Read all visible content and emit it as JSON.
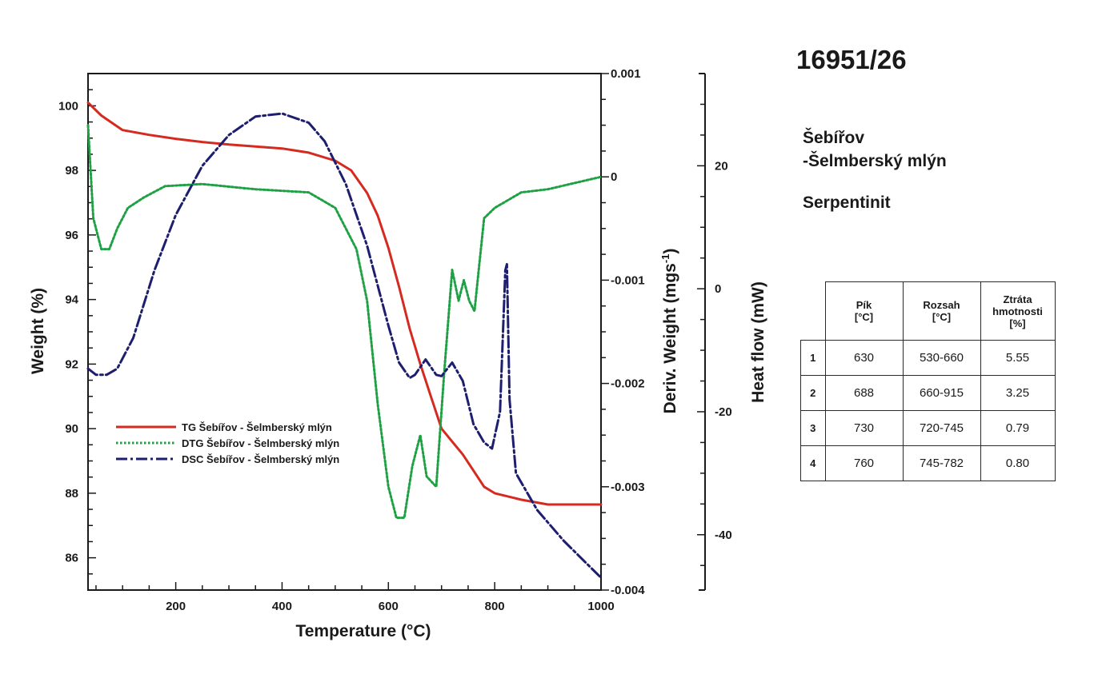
{
  "sample": {
    "id": "16951/26",
    "locality_line1": "Šebířov",
    "locality_line2": "-Šelmberský mlýn",
    "rock": "Serpentinit"
  },
  "table": {
    "headers": [
      [
        "Pík",
        "[°C]"
      ],
      [
        "Rozsah",
        "[°C]"
      ],
      [
        "Ztráta",
        "hmotnosti",
        "[%]"
      ]
    ],
    "rows": [
      {
        "n": "1",
        "peak": "630",
        "range": "530-660",
        "loss": "5.55"
      },
      {
        "n": "2",
        "peak": "688",
        "range": "660-915",
        "loss": "3.25"
      },
      {
        "n": "3",
        "peak": "730",
        "range": "720-745",
        "loss": "0.79"
      },
      {
        "n": "4",
        "peak": "760",
        "range": "745-782",
        "loss": "0.80"
      }
    ]
  },
  "chart_data": {
    "type": "line",
    "xlabel": "Temperature (°C)",
    "xlim": [
      35,
      1000
    ],
    "xticks": [
      200,
      400,
      600,
      800,
      1000
    ],
    "y_left": {
      "label": "Weight (%)",
      "lim": [
        85,
        101
      ],
      "ticks": [
        86,
        88,
        90,
        92,
        94,
        96,
        98,
        100
      ]
    },
    "y_right1": {
      "label": "Deriv. Weight (mgs",
      "label_sup": "-1",
      "label_end": ")",
      "lim": [
        -0.004,
        0.001
      ],
      "ticks": [
        0.001,
        0,
        -0.001,
        -0.002,
        -0.003,
        -0.004
      ],
      "tick_labels": [
        "0.001",
        "0",
        "-0.001",
        "-0.002",
        "-0.003",
        "-0.004"
      ]
    },
    "y_right2": {
      "label": "Heat flow (mW)",
      "lim": [
        -49,
        35
      ],
      "ticks": [
        20,
        0,
        -20,
        -40
      ]
    },
    "grid": false,
    "legend_placement": "lower-left",
    "colors": {
      "TG": "#d42a20",
      "DTG": "#1fa045",
      "DSC": "#1e1e6e"
    },
    "series": [
      {
        "name": "TG Šebířov - Šelmberský mlýn",
        "axis": "left",
        "x": [
          35,
          60,
          100,
          150,
          200,
          250,
          300,
          350,
          400,
          450,
          500,
          530,
          560,
          580,
          600,
          620,
          640,
          660,
          680,
          700,
          720,
          740,
          760,
          780,
          800,
          850,
          900,
          1000
        ],
        "y": [
          100.1,
          99.7,
          99.25,
          99.1,
          98.98,
          98.88,
          98.8,
          98.74,
          98.68,
          98.55,
          98.3,
          98.0,
          97.3,
          96.6,
          95.6,
          94.4,
          93.1,
          92.0,
          91.0,
          90.0,
          89.6,
          89.2,
          88.7,
          88.2,
          88.0,
          87.8,
          87.65,
          87.65
        ]
      },
      {
        "name": "DTG Šebířov - Šelmberský mlýn",
        "axis": "right1",
        "x": [
          35,
          45,
          60,
          75,
          90,
          110,
          140,
          180,
          250,
          350,
          450,
          500,
          540,
          560,
          580,
          600,
          615,
          630,
          645,
          660,
          672,
          690,
          705,
          720,
          732,
          742,
          752,
          762,
          770,
          780,
          800,
          850,
          900,
          1000
        ],
        "y": [
          0.0005,
          -0.0004,
          -0.0007,
          -0.0007,
          -0.0005,
          -0.0003,
          -0.0002,
          -9e-05,
          -7e-05,
          -0.00012,
          -0.00015,
          -0.0003,
          -0.0007,
          -0.0012,
          -0.0022,
          -0.003,
          -0.0033,
          -0.0033,
          -0.0028,
          -0.0025,
          -0.0029,
          -0.003,
          -0.0019,
          -0.0009,
          -0.0012,
          -0.001,
          -0.0012,
          -0.0013,
          -0.0009,
          -0.0004,
          -0.0003,
          -0.00015,
          -0.00012,
          0.0
        ]
      },
      {
        "name": "DSC Šebířov - Šelmberský mlýn",
        "axis": "right2",
        "x": [
          35,
          50,
          70,
          90,
          120,
          160,
          200,
          250,
          300,
          350,
          400,
          450,
          480,
          520,
          560,
          600,
          620,
          640,
          650,
          670,
          690,
          700,
          720,
          740,
          760,
          780,
          795,
          810,
          820,
          823,
          828,
          840,
          880,
          930,
          1000
        ],
        "y": [
          -13,
          -14,
          -14,
          -13,
          -8,
          3,
          12,
          20,
          25,
          28,
          28.5,
          27,
          24,
          17,
          7,
          -6,
          -12,
          -14.5,
          -14,
          -11.5,
          -14,
          -14.2,
          -12,
          -15,
          -22,
          -25,
          -26,
          -20,
          3,
          4,
          -18,
          -30,
          -36,
          -41,
          -47
        ]
      }
    ]
  }
}
